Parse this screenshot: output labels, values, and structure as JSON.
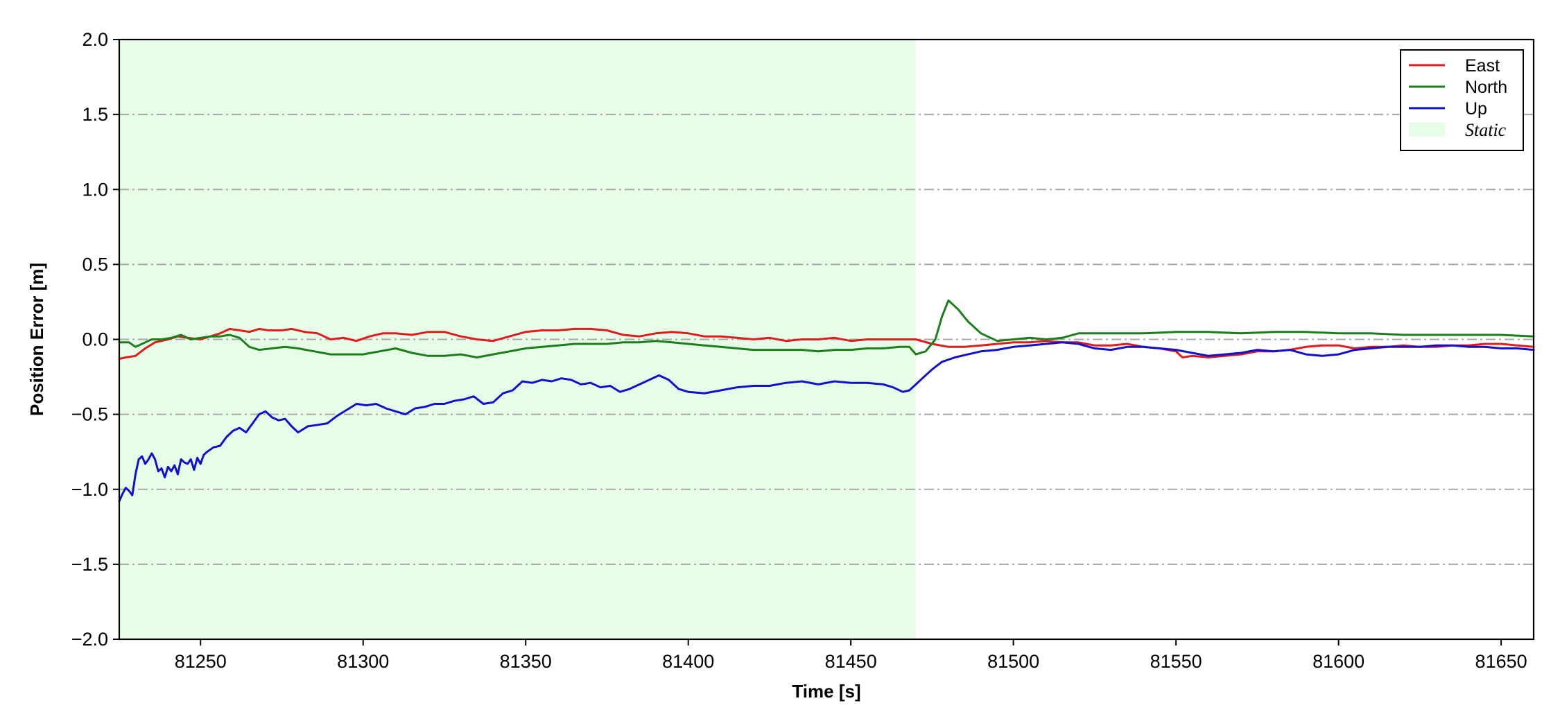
{
  "chart_data": {
    "type": "line",
    "title": "",
    "xlabel": "Time [s]",
    "ylabel": "Position Error [m]",
    "xlim": [
      81225,
      81660
    ],
    "ylim": [
      -2.0,
      2.0
    ],
    "xticks": [
      81250,
      81300,
      81350,
      81400,
      81450,
      81500,
      81550,
      81600,
      81650
    ],
    "xtick_labels": [
      "81250",
      "81300",
      "81350",
      "81400",
      "81450",
      "81500",
      "81550",
      "81600",
      "81650"
    ],
    "yticks": [
      -2.0,
      -1.5,
      -1.0,
      -0.5,
      0.0,
      0.5,
      1.0,
      1.5,
      2.0
    ],
    "ytick_labels": [
      "−2.0",
      "−1.5",
      "−1.0",
      "−0.5",
      "0.0",
      "0.5",
      "1.0",
      "1.5",
      "2.0"
    ],
    "grid": "horizontal dash-dot",
    "legend_position": "top-right",
    "static_region": {
      "label": "Static",
      "x_start": 81225,
      "x_end": 81470,
      "color": "#e8fde8"
    },
    "series": [
      {
        "name": "East",
        "color": "#e01b1b",
        "x": [
          81225,
          81227,
          81230,
          81233,
          81236,
          81240,
          81243,
          81246,
          81250,
          81253,
          81256,
          81259,
          81262,
          81265,
          81268,
          81271,
          81275,
          81278,
          81282,
          81286,
          81290,
          81294,
          81298,
          81302,
          81306,
          81310,
          81315,
          81320,
          81325,
          81330,
          81335,
          81340,
          81345,
          81350,
          81355,
          81360,
          81365,
          81370,
          81375,
          81380,
          81385,
          81390,
          81395,
          81400,
          81405,
          81410,
          81415,
          81420,
          81425,
          81430,
          81435,
          81440,
          81445,
          81450,
          81455,
          81460,
          81465,
          81470,
          81475,
          81480,
          81485,
          81490,
          81495,
          81500,
          81505,
          81510,
          81515,
          81520,
          81525,
          81530,
          81535,
          81540,
          81545,
          81550,
          81552,
          81555,
          81560,
          81565,
          81570,
          81575,
          81580,
          81585,
          81590,
          81595,
          81600,
          81605,
          81610,
          81615,
          81620,
          81625,
          81630,
          81635,
          81640,
          81645,
          81650,
          81655,
          81660
        ],
        "values": [
          -0.13,
          -0.12,
          -0.11,
          -0.06,
          -0.02,
          0.0,
          0.02,
          0.01,
          0.0,
          0.02,
          0.04,
          0.07,
          0.06,
          0.05,
          0.07,
          0.06,
          0.06,
          0.07,
          0.05,
          0.04,
          0.0,
          0.01,
          -0.01,
          0.02,
          0.04,
          0.04,
          0.03,
          0.05,
          0.05,
          0.02,
          0.0,
          -0.01,
          0.02,
          0.05,
          0.06,
          0.06,
          0.07,
          0.07,
          0.06,
          0.03,
          0.02,
          0.04,
          0.05,
          0.04,
          0.02,
          0.02,
          0.01,
          0.0,
          0.01,
          -0.01,
          0.0,
          0.0,
          0.01,
          -0.01,
          0.0,
          0.0,
          0.0,
          0.0,
          -0.03,
          -0.05,
          -0.05,
          -0.04,
          -0.03,
          -0.02,
          -0.02,
          -0.01,
          -0.02,
          -0.02,
          -0.04,
          -0.04,
          -0.03,
          -0.05,
          -0.06,
          -0.08,
          -0.12,
          -0.11,
          -0.12,
          -0.11,
          -0.1,
          -0.08,
          -0.08,
          -0.07,
          -0.05,
          -0.04,
          -0.04,
          -0.06,
          -0.05,
          -0.05,
          -0.04,
          -0.05,
          -0.05,
          -0.04,
          -0.04,
          -0.03,
          -0.03,
          -0.04,
          -0.05
        ]
      },
      {
        "name": "North",
        "color": "#1a7f1a",
        "x": [
          81225,
          81228,
          81230,
          81233,
          81235,
          81238,
          81241,
          81244,
          81247,
          81250,
          81253,
          81256,
          81259,
          81262,
          81265,
          81268,
          81272,
          81276,
          81280,
          81285,
          81290,
          81295,
          81300,
          81305,
          81310,
          81315,
          81320,
          81325,
          81330,
          81335,
          81340,
          81345,
          81350,
          81355,
          81360,
          81365,
          81370,
          81375,
          81380,
          81385,
          81390,
          81395,
          81400,
          81405,
          81410,
          81415,
          81420,
          81425,
          81430,
          81435,
          81440,
          81445,
          81450,
          81455,
          81460,
          81465,
          81468,
          81470,
          81473,
          81476,
          81478,
          81480,
          81483,
          81486,
          81490,
          81495,
          81500,
          81505,
          81510,
          81515,
          81520,
          81525,
          81530,
          81540,
          81550,
          81560,
          81570,
          81580,
          81590,
          81600,
          81610,
          81620,
          81630,
          81640,
          81650,
          81660
        ],
        "values": [
          -0.02,
          -0.02,
          -0.05,
          -0.02,
          0.0,
          0.0,
          0.01,
          0.03,
          0.0,
          0.01,
          0.02,
          0.02,
          0.03,
          0.01,
          -0.05,
          -0.07,
          -0.06,
          -0.05,
          -0.06,
          -0.08,
          -0.1,
          -0.1,
          -0.1,
          -0.08,
          -0.06,
          -0.09,
          -0.11,
          -0.11,
          -0.1,
          -0.12,
          -0.1,
          -0.08,
          -0.06,
          -0.05,
          -0.04,
          -0.03,
          -0.03,
          -0.03,
          -0.02,
          -0.02,
          -0.01,
          -0.02,
          -0.03,
          -0.04,
          -0.05,
          -0.06,
          -0.07,
          -0.07,
          -0.07,
          -0.07,
          -0.08,
          -0.07,
          -0.07,
          -0.06,
          -0.06,
          -0.05,
          -0.05,
          -0.1,
          -0.08,
          0.0,
          0.15,
          0.26,
          0.2,
          0.12,
          0.04,
          -0.01,
          0.0,
          0.01,
          0.0,
          0.01,
          0.04,
          0.04,
          0.04,
          0.04,
          0.05,
          0.05,
          0.04,
          0.05,
          0.05,
          0.04,
          0.04,
          0.03,
          0.03,
          0.03,
          0.03,
          0.02
        ]
      },
      {
        "name": "Up",
        "color": "#1010d0",
        "x": [
          81225,
          81226,
          81227,
          81228,
          81229,
          81230,
          81231,
          81232,
          81233,
          81234,
          81235,
          81236,
          81237,
          81238,
          81239,
          81240,
          81241,
          81242,
          81243,
          81244,
          81245,
          81246,
          81247,
          81248,
          81249,
          81250,
          81251,
          81252,
          81254,
          81256,
          81258,
          81260,
          81262,
          81264,
          81266,
          81268,
          81270,
          81272,
          81274,
          81276,
          81278,
          81280,
          81283,
          81286,
          81289,
          81292,
          81295,
          81298,
          81301,
          81304,
          81307,
          81310,
          81313,
          81316,
          81319,
          81322,
          81325,
          81328,
          81331,
          81334,
          81337,
          81340,
          81343,
          81346,
          81349,
          81352,
          81355,
          81358,
          81361,
          81364,
          81367,
          81370,
          81373,
          81376,
          81379,
          81382,
          81385,
          81388,
          81391,
          81394,
          81397,
          81400,
          81405,
          81410,
          81415,
          81420,
          81425,
          81430,
          81435,
          81440,
          81445,
          81450,
          81455,
          81460,
          81463,
          81466,
          81468,
          81470,
          81472,
          81475,
          81478,
          81482,
          81486,
          81490,
          81495,
          81500,
          81505,
          81510,
          81515,
          81520,
          81525,
          81530,
          81535,
          81540,
          81545,
          81550,
          81555,
          81560,
          81565,
          81570,
          81575,
          81580,
          81585,
          81590,
          81595,
          81600,
          81605,
          81610,
          81615,
          81620,
          81625,
          81630,
          81635,
          81640,
          81645,
          81650,
          81655,
          81660
        ],
        "values": [
          -1.08,
          -1.03,
          -0.99,
          -1.01,
          -1.04,
          -0.9,
          -0.8,
          -0.78,
          -0.83,
          -0.8,
          -0.76,
          -0.8,
          -0.88,
          -0.86,
          -0.92,
          -0.85,
          -0.88,
          -0.84,
          -0.9,
          -0.8,
          -0.82,
          -0.83,
          -0.8,
          -0.87,
          -0.79,
          -0.83,
          -0.77,
          -0.75,
          -0.72,
          -0.71,
          -0.65,
          -0.61,
          -0.59,
          -0.62,
          -0.56,
          -0.5,
          -0.48,
          -0.52,
          -0.54,
          -0.53,
          -0.58,
          -0.62,
          -0.58,
          -0.57,
          -0.56,
          -0.51,
          -0.47,
          -0.43,
          -0.44,
          -0.43,
          -0.46,
          -0.48,
          -0.5,
          -0.46,
          -0.45,
          -0.43,
          -0.43,
          -0.41,
          -0.4,
          -0.38,
          -0.43,
          -0.42,
          -0.36,
          -0.34,
          -0.28,
          -0.29,
          -0.27,
          -0.28,
          -0.26,
          -0.27,
          -0.3,
          -0.29,
          -0.32,
          -0.31,
          -0.35,
          -0.33,
          -0.3,
          -0.27,
          -0.24,
          -0.27,
          -0.33,
          -0.35,
          -0.36,
          -0.34,
          -0.32,
          -0.31,
          -0.31,
          -0.29,
          -0.28,
          -0.3,
          -0.28,
          -0.29,
          -0.29,
          -0.3,
          -0.32,
          -0.35,
          -0.34,
          -0.3,
          -0.26,
          -0.2,
          -0.15,
          -0.12,
          -0.1,
          -0.08,
          -0.07,
          -0.05,
          -0.04,
          -0.03,
          -0.02,
          -0.03,
          -0.06,
          -0.07,
          -0.05,
          -0.05,
          -0.06,
          -0.07,
          -0.09,
          -0.11,
          -0.1,
          -0.09,
          -0.07,
          -0.08,
          -0.07,
          -0.1,
          -0.11,
          -0.1,
          -0.07,
          -0.06,
          -0.05,
          -0.05,
          -0.05,
          -0.04,
          -0.04,
          -0.05,
          -0.05,
          -0.06,
          -0.06,
          -0.07
        ]
      }
    ]
  }
}
